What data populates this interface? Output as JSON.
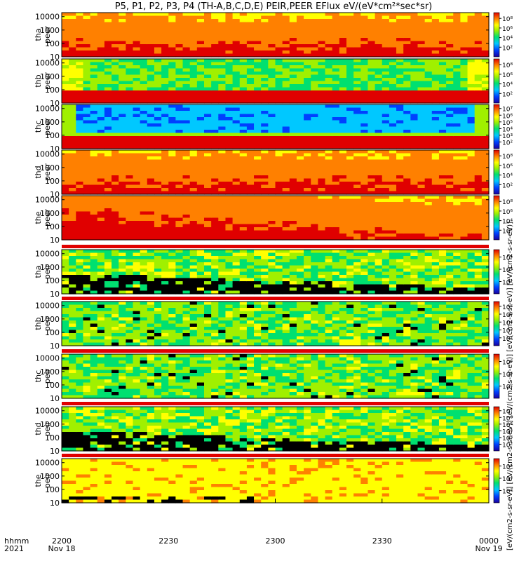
{
  "title": "P5, P1, P2, P3, P4 (TH-A,B,C,D,E) PEIR,PEER EFlux eV/(eV*cm²*sec*sr)",
  "footer": {
    "line1": "hhmm",
    "line2": "2021"
  },
  "x_ticks": [
    {
      "time": "2200",
      "date": "Nov 18"
    },
    {
      "time": "2230",
      "date": ""
    },
    {
      "time": "2300",
      "date": ""
    },
    {
      "time": "2330",
      "date": ""
    },
    {
      "time": "0000",
      "date": "Nov 19"
    }
  ],
  "colorbar_units": "[eV/(cm2-s-sr-eV)] [eV/(cm2-s-sr-eV)] [eV/(cm2-s-sr-eV)] [eV/(cm2-s-sr-eV)] [eV/(cm2-s-sr-eV)]",
  "chart_data": {
    "type": "heatmap",
    "x_range": [
      "2021-11-18 22:00",
      "2021-11-19 00:00"
    ],
    "y_scale": "log",
    "y_range": [
      10,
      20000
    ],
    "y_ticks": [
      "10",
      "100",
      "1000",
      "10000"
    ],
    "panels": [
      {
        "label_top": "tha",
        "label_bottom": "peer",
        "cbar_ticks": [
          "10²",
          "10⁴",
          "10⁶",
          "10⁸"
        ],
        "pattern": "electron_warm"
      },
      {
        "label_top": "thb",
        "label_bottom": "peer",
        "cbar_ticks": [
          "10²",
          "10⁴",
          "10⁶",
          "10⁸"
        ],
        "pattern": "electron_green"
      },
      {
        "label_top": "thc",
        "label_bottom": "peer",
        "cbar_ticks": [
          "10²",
          "10³",
          "10⁴",
          "10⁵",
          "10⁶",
          "10⁷"
        ],
        "pattern": "electron_blue"
      },
      {
        "label_top": "thd",
        "label_bottom": "peer",
        "cbar_ticks": [
          "10²",
          "10⁴",
          "10⁶",
          "10⁸"
        ],
        "pattern": "electron_warm"
      },
      {
        "label_top": "the",
        "label_bottom": "peer",
        "cbar_ticks": [
          "10²",
          "10⁴",
          "10⁶",
          "10⁸"
        ],
        "pattern": "electron_hot"
      },
      {
        "label_top": "tha",
        "label_bottom": "peir",
        "cbar_ticks": [
          "10²",
          "10⁴",
          "10⁶"
        ],
        "pattern": "ion_sparse"
      },
      {
        "label_top": "thb",
        "label_bottom": "peir",
        "cbar_ticks": [
          "10²",
          "10³",
          "10⁴",
          "10⁵",
          "10⁶"
        ],
        "pattern": "ion_green"
      },
      {
        "label_top": "thc",
        "label_bottom": "peir",
        "cbar_ticks": [
          "10²",
          "10⁴",
          "10⁶"
        ],
        "pattern": "ion_green"
      },
      {
        "label_top": "thd",
        "label_bottom": "peir",
        "cbar_ticks": [
          "10²",
          "10³",
          "10⁴",
          "10⁵",
          "10⁶",
          "10⁷"
        ],
        "pattern": "ion_sparse"
      },
      {
        "label_top": "the",
        "label_bottom": "peir",
        "cbar_ticks": [
          "10²",
          "10⁴",
          "10⁶"
        ],
        "pattern": "ion_yellow"
      }
    ]
  }
}
